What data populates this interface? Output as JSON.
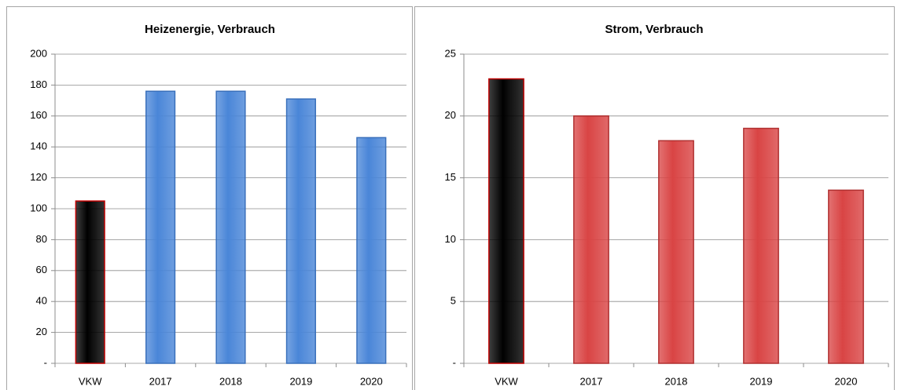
{
  "chart_data": [
    {
      "type": "bar",
      "title": "Heizenergie, Verbrauch",
      "categories": [
        "VKW",
        "2017",
        "2018",
        "2019",
        "2020"
      ],
      "values": [
        105,
        176,
        176,
        171,
        146
      ],
      "colors": [
        "#000000",
        "#4a86d8",
        "#4a86d8",
        "#4a86d8",
        "#4a86d8"
      ],
      "edge_colors": [
        "#c00000",
        "#3a70bb",
        "#3a70bb",
        "#3a70bb",
        "#3a70bb"
      ],
      "ylim": [
        0,
        200
      ],
      "yticks": [
        {
          "value": 0,
          "label": "-"
        },
        20,
        40,
        60,
        80,
        100,
        120,
        140,
        160,
        180,
        200
      ],
      "grid": true
    },
    {
      "type": "bar",
      "title": "Strom, Verbrauch",
      "categories": [
        "VKW",
        "2017",
        "2018",
        "2019",
        "2020"
      ],
      "values": [
        23,
        20,
        18,
        19,
        14
      ],
      "colors": [
        "#000000",
        "#d94444",
        "#d94444",
        "#d94444",
        "#d94444"
      ],
      "edge_colors": [
        "#c00000",
        "#b03030",
        "#b03030",
        "#b03030",
        "#b03030"
      ],
      "ylim": [
        0,
        25
      ],
      "yticks": [
        {
          "value": 0,
          "label": "-"
        },
        5,
        10,
        15,
        20,
        25
      ],
      "grid": true
    }
  ]
}
